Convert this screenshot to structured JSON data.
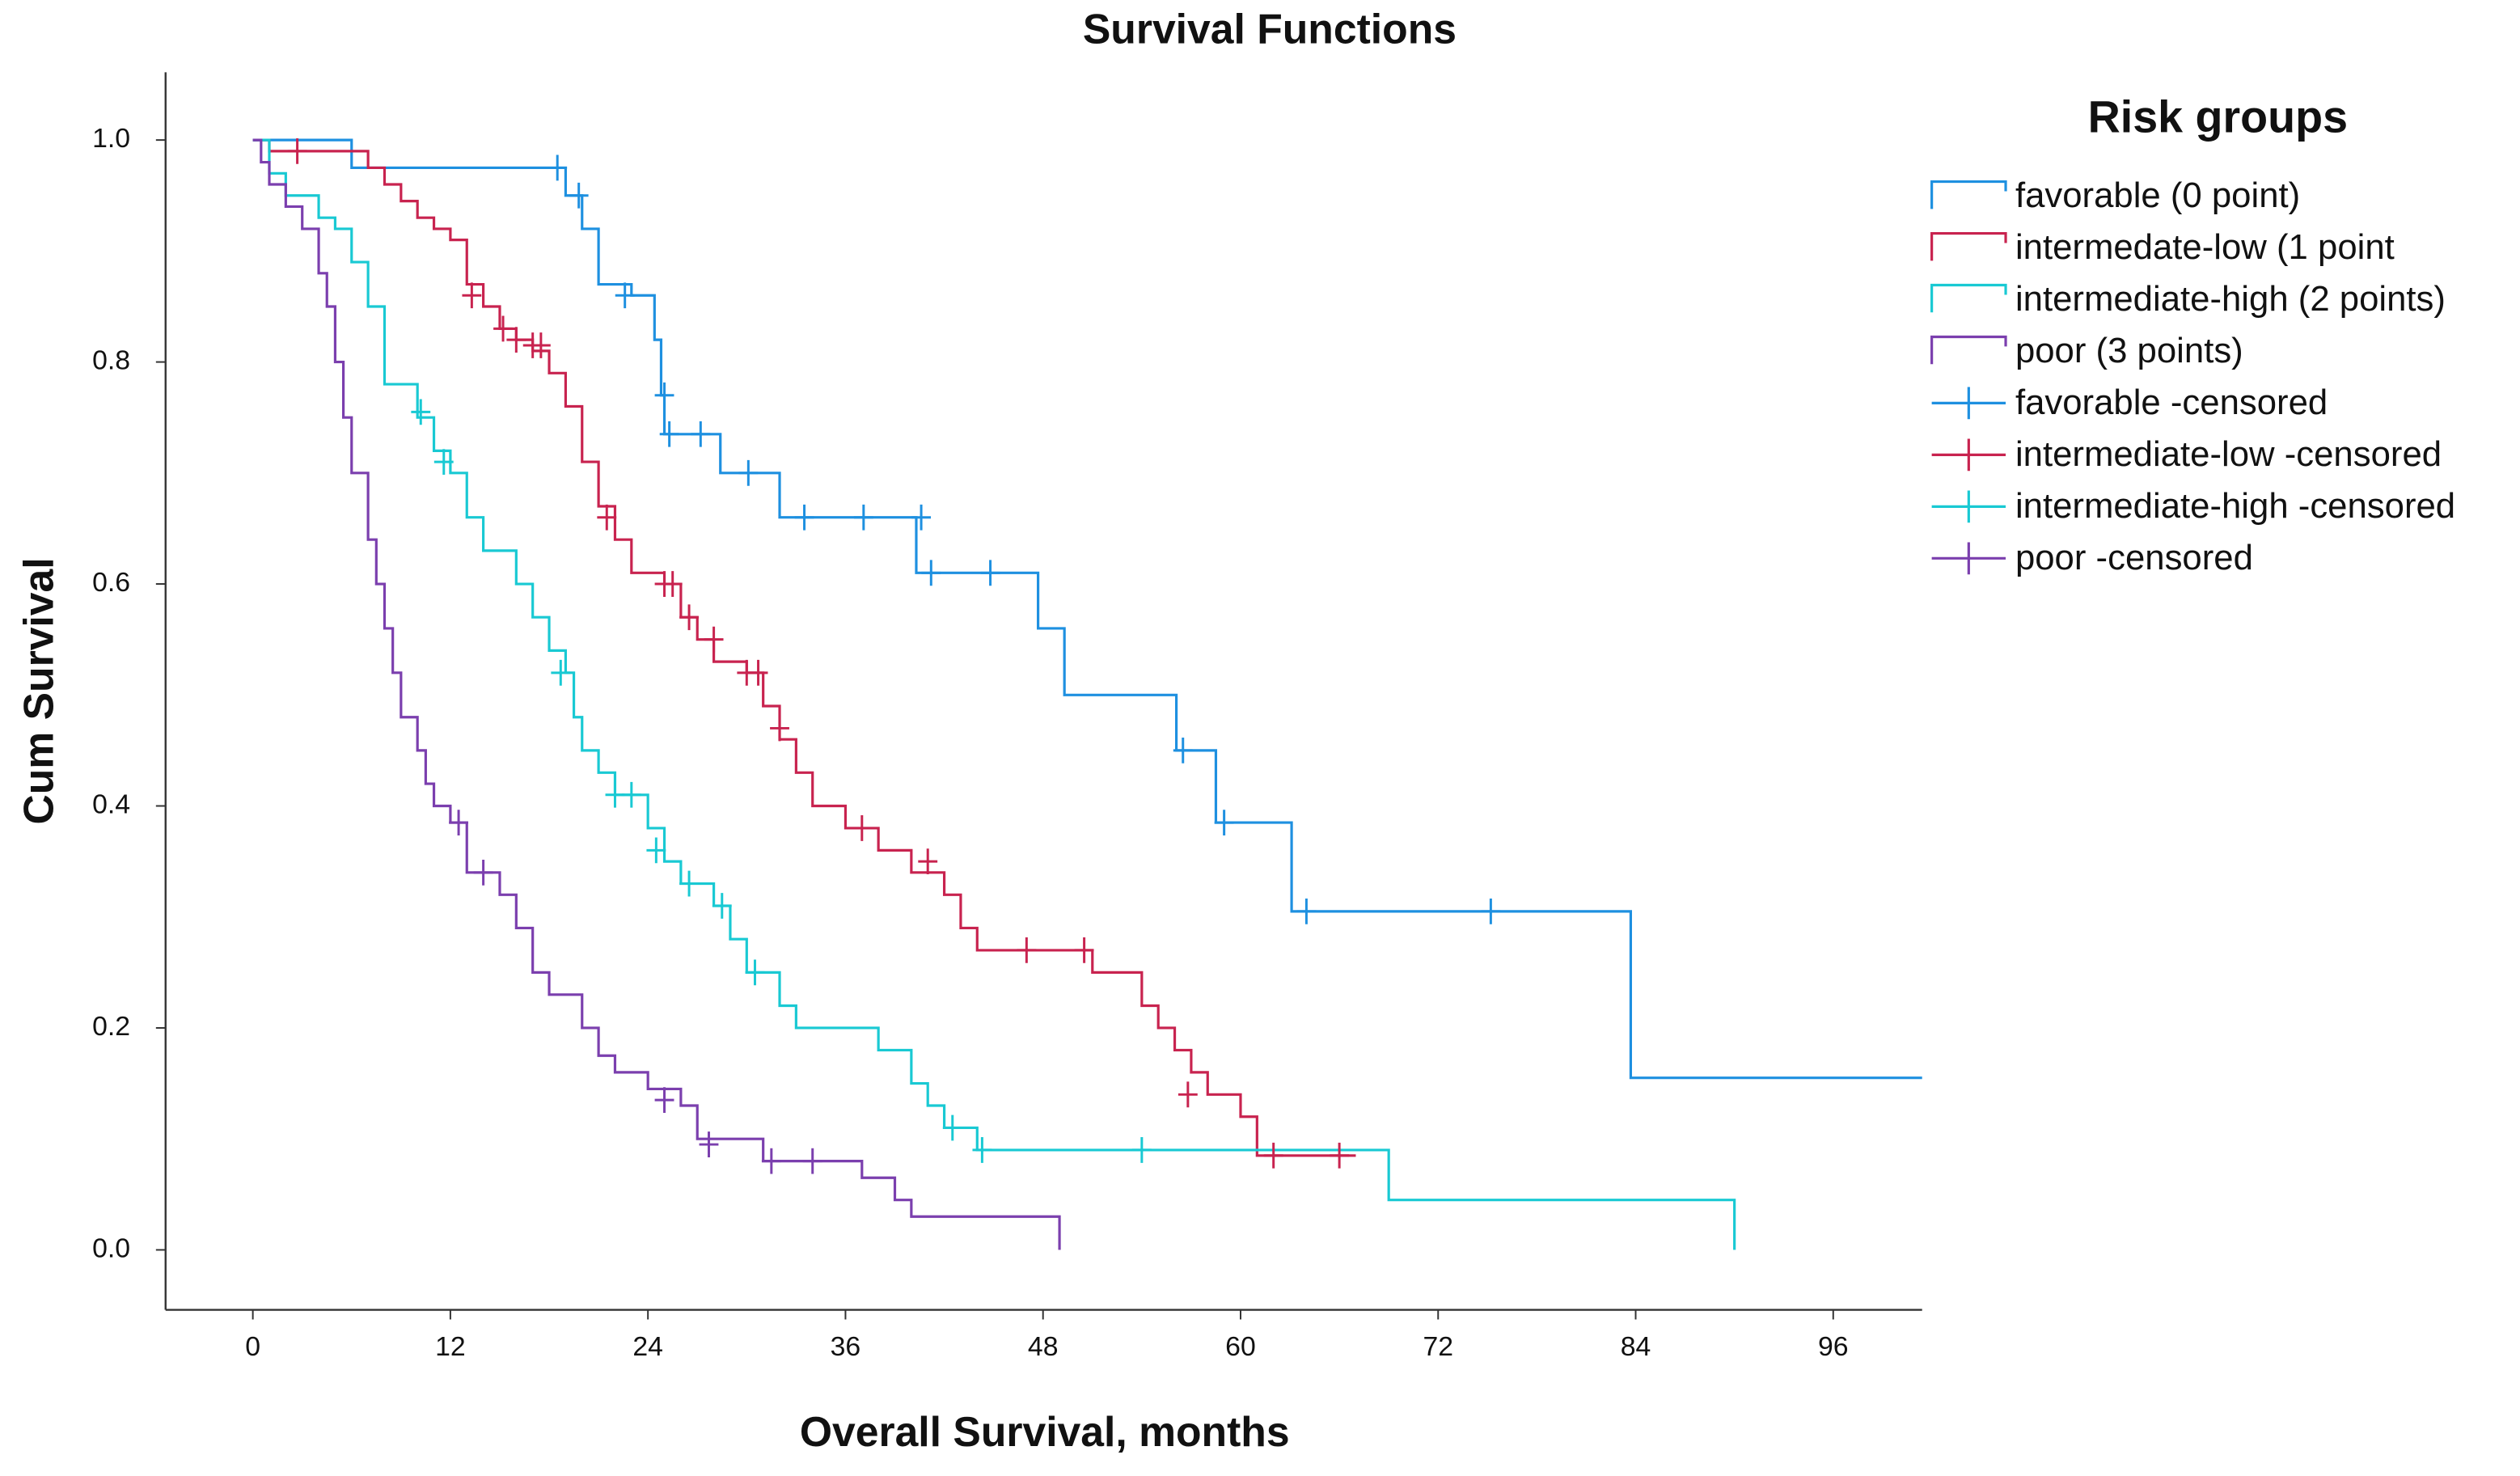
{
  "chart_data": {
    "type": "step",
    "title": "Survival Functions",
    "xlabel": "Overall Survival, months",
    "ylabel": "Cum Survival",
    "legend_title": "Risk groups",
    "legend": "right",
    "xlim": [
      -5.3,
      101.4
    ],
    "ylim": [
      -0.054,
      1.061
    ],
    "xticks": [
      0,
      12,
      24,
      36,
      48,
      60,
      72,
      84,
      96
    ],
    "yticks": [
      {
        "value": 0,
        "label": "0.0"
      },
      {
        "value": 0.2,
        "label": "0.2"
      },
      {
        "value": 0.4,
        "label": "0.4"
      },
      {
        "value": 0.6,
        "label": "0.6"
      },
      {
        "value": 0.8,
        "label": "0.8"
      },
      {
        "value": 1,
        "label": "1.0"
      }
    ],
    "series": [
      {
        "name": "favorable (0 point)",
        "color": "#1e90e0",
        "style": "line",
        "x": [
          0,
          6,
          19,
          20,
          21,
          23,
          24.4,
          24.8,
          25,
          28.4,
          32,
          40.3,
          47.7,
          49.3,
          56.1,
          58.5,
          63.1,
          83.7,
          101.4
        ],
        "values": [
          1,
          0.975,
          0.95,
          0.92,
          0.87,
          0.86,
          0.82,
          0.77,
          0.735,
          0.7,
          0.66,
          0.61,
          0.56,
          0.5,
          0.45,
          0.385,
          0.305,
          0.155,
          0.155
        ]
      },
      {
        "name": "intermedate-low (1 point",
        "color": "#c8234f",
        "style": "line",
        "x": [
          0,
          1,
          7,
          8,
          9,
          10,
          11,
          12,
          13,
          14,
          15,
          16,
          17,
          18,
          19,
          20,
          21,
          22,
          23,
          25,
          26,
          27,
          28,
          30,
          31,
          32,
          33,
          34,
          36,
          38,
          40,
          42,
          43,
          44,
          51,
          54,
          55,
          56,
          57,
          58,
          60,
          61,
          67
        ],
        "values": [
          1,
          0.99,
          0.975,
          0.96,
          0.945,
          0.93,
          0.92,
          0.91,
          0.87,
          0.85,
          0.83,
          0.82,
          0.81,
          0.79,
          0.76,
          0.71,
          0.67,
          0.64,
          0.61,
          0.6,
          0.57,
          0.55,
          0.53,
          0.52,
          0.49,
          0.46,
          0.43,
          0.4,
          0.38,
          0.36,
          0.34,
          0.32,
          0.29,
          0.27,
          0.25,
          0.22,
          0.2,
          0.18,
          0.16,
          0.14,
          0.12,
          0.085,
          0.085
        ]
      },
      {
        "name": "intermediate-high (2 points)",
        "color": "#19c9d3",
        "style": "line",
        "x": [
          0,
          1,
          2,
          4,
          5,
          6,
          7,
          8,
          10,
          11,
          12,
          13,
          14,
          16,
          17,
          18,
          19,
          19.5,
          20,
          21,
          22,
          24,
          25,
          26,
          28,
          29,
          30,
          32,
          33,
          38,
          40,
          41,
          42,
          44,
          69,
          90,
          90
        ],
        "values": [
          1,
          0.97,
          0.95,
          0.93,
          0.92,
          0.89,
          0.85,
          0.78,
          0.75,
          0.72,
          0.7,
          0.66,
          0.63,
          0.6,
          0.57,
          0.54,
          0.52,
          0.48,
          0.45,
          0.43,
          0.41,
          0.38,
          0.35,
          0.33,
          0.31,
          0.28,
          0.25,
          0.22,
          0.2,
          0.18,
          0.15,
          0.13,
          0.11,
          0.09,
          0.045,
          0.045,
          0
        ]
      },
      {
        "name": "poor (3 points)",
        "color": "#7b3fae",
        "style": "line",
        "x": [
          0,
          0.5,
          1,
          2,
          3,
          4,
          4.5,
          5,
          5.5,
          6,
          7,
          7.5,
          8,
          8.5,
          9,
          10,
          10.5,
          11,
          12,
          13,
          15,
          16,
          17,
          18,
          20,
          21,
          22,
          24,
          26,
          27,
          31,
          37,
          39,
          40,
          49,
          49
        ],
        "values": [
          1,
          0.98,
          0.96,
          0.94,
          0.92,
          0.88,
          0.85,
          0.8,
          0.75,
          0.7,
          0.64,
          0.6,
          0.56,
          0.52,
          0.48,
          0.45,
          0.42,
          0.4,
          0.385,
          0.34,
          0.32,
          0.29,
          0.25,
          0.23,
          0.2,
          0.175,
          0.16,
          0.145,
          0.13,
          0.1,
          0.08,
          0.065,
          0.045,
          0.03,
          0.03,
          0
        ]
      },
      {
        "name": "favorable -censored",
        "color": "#1e90e0",
        "style": "censor",
        "x": [
          18.5,
          19.8,
          22.6,
          25,
          25.3,
          27.2,
          30.1,
          33.5,
          37.1,
          40.6,
          41.2,
          44.8,
          56.5,
          59,
          64,
          75.2
        ],
        "values": [
          0.975,
          0.95,
          0.86,
          0.77,
          0.735,
          0.735,
          0.7,
          0.66,
          0.66,
          0.66,
          0.61,
          0.61,
          0.45,
          0.385,
          0.305,
          0.305
        ]
      },
      {
        "name": "intermediate-low -censored",
        "color": "#c8234f",
        "style": "censor",
        "x": [
          2.7,
          13.3,
          15.2,
          16,
          17,
          17.5,
          21.5,
          25,
          25.5,
          26.5,
          28,
          30,
          30.7,
          32,
          37,
          41,
          47,
          50.5,
          56.8,
          62,
          66
        ],
        "values": [
          0.99,
          0.86,
          0.83,
          0.82,
          0.815,
          0.815,
          0.66,
          0.6,
          0.6,
          0.57,
          0.55,
          0.52,
          0.52,
          0.47,
          0.38,
          0.35,
          0.27,
          0.27,
          0.14,
          0.085,
          0.085
        ]
      },
      {
        "name": "intermediate-high -censored",
        "color": "#19c9d3",
        "style": "censor",
        "x": [
          10.2,
          11.6,
          18.7,
          22,
          23,
          24.5,
          26.5,
          28.5,
          30.5,
          42.5,
          44.3,
          54
        ],
        "values": [
          0.755,
          0.71,
          0.52,
          0.41,
          0.41,
          0.36,
          0.33,
          0.31,
          0.25,
          0.11,
          0.09,
          0.09
        ]
      },
      {
        "name": "poor -censored",
        "color": "#7b3fae",
        "style": "censor",
        "x": [
          12.5,
          14,
          25,
          27.7,
          31.5,
          34
        ],
        "values": [
          0.385,
          0.34,
          0.135,
          0.095,
          0.08,
          0.08
        ]
      }
    ]
  }
}
